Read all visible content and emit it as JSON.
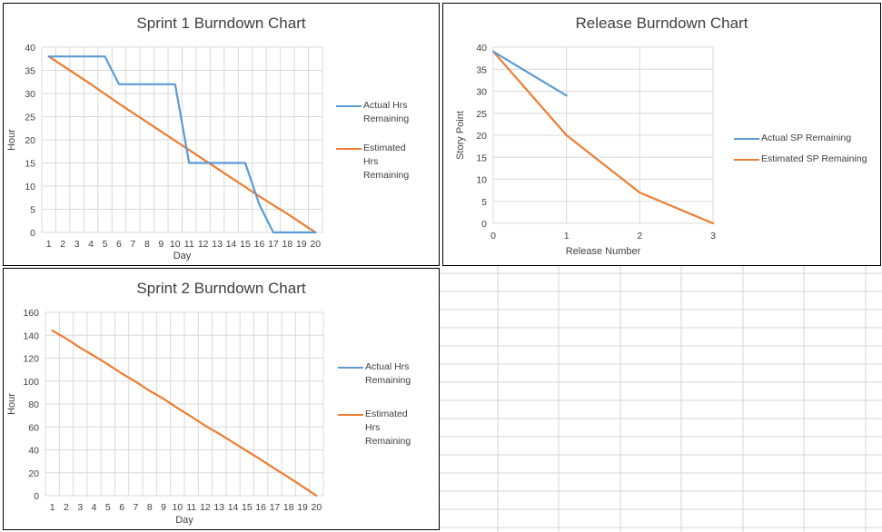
{
  "colors": {
    "actual": "#5B9BD5",
    "estimated": "#ED7D31",
    "gridline": "#D9D9D9",
    "sheet_grid": "#D4D4D4"
  },
  "chart_data": [
    {
      "type": "line",
      "title": "Sprint 1 Burndown Chart",
      "xlabel": "Day",
      "ylabel": "Hour",
      "x": [
        1,
        2,
        3,
        4,
        5,
        6,
        7,
        8,
        9,
        10,
        11,
        12,
        13,
        14,
        15,
        16,
        17,
        18,
        19,
        20
      ],
      "ylim": [
        0,
        40
      ],
      "ytick_step": 5,
      "grid": true,
      "legend": "right",
      "series": [
        {
          "name": "Actual Hrs Remaining",
          "x": [
            1,
            2,
            3,
            4,
            5,
            6,
            7,
            8,
            9,
            10,
            11,
            12,
            13,
            14,
            15,
            16,
            17,
            18,
            19,
            20
          ],
          "values": [
            38,
            38,
            38,
            38,
            38,
            32,
            32,
            32,
            32,
            32,
            15,
            15,
            15,
            15,
            15,
            6,
            0,
            0,
            0,
            0
          ]
        },
        {
          "name": "Estimated Hrs Remaining",
          "x": [
            1,
            2,
            3,
            4,
            5,
            6,
            7,
            8,
            9,
            10,
            11,
            12,
            13,
            14,
            15,
            16,
            17,
            18,
            19,
            20
          ],
          "values": [
            38,
            36,
            34,
            32,
            29.9,
            27.8,
            25.8,
            23.8,
            21.8,
            19.8,
            17.8,
            15.8,
            13.8,
            11.8,
            9.8,
            7.8,
            5.9,
            4,
            2,
            0
          ]
        }
      ]
    },
    {
      "type": "line",
      "title": "Release Burndown Chart",
      "xlabel": "Release Number",
      "ylabel": "Story Point",
      "x": [
        0,
        1,
        2,
        3
      ],
      "ylim": [
        0,
        40
      ],
      "ytick_step": 5,
      "grid": true,
      "legend": "right",
      "series": [
        {
          "name": "Actual SP Remaining",
          "x": [
            0,
            1
          ],
          "values": [
            39,
            29
          ]
        },
        {
          "name": "Estimated SP Remaining",
          "x": [
            0,
            1,
            2,
            3
          ],
          "values": [
            39,
            20,
            7,
            0
          ]
        }
      ]
    },
    {
      "type": "line",
      "title": "Sprint 2 Burndown Chart",
      "xlabel": "Day",
      "ylabel": "Hour",
      "x": [
        1,
        2,
        3,
        4,
        5,
        6,
        7,
        8,
        9,
        10,
        11,
        12,
        13,
        14,
        15,
        16,
        17,
        18,
        19,
        20
      ],
      "ylim": [
        0,
        160
      ],
      "ytick_step": 20,
      "grid": true,
      "legend": "right",
      "series": [
        {
          "name": "Actual Hrs Remaining",
          "x": [],
          "values": []
        },
        {
          "name": "Estimated Hrs Remaining",
          "x": [
            1,
            2,
            3,
            4,
            5,
            6,
            7,
            8,
            9,
            10,
            11,
            12,
            13,
            14,
            15,
            16,
            17,
            18,
            19,
            20
          ],
          "values": [
            144,
            137,
            129,
            122,
            114.5,
            106.5,
            99.5,
            91.5,
            84.5,
            76.5,
            69,
            61,
            54,
            46.5,
            39,
            31.5,
            23.5,
            16,
            8,
            0
          ]
        }
      ]
    }
  ]
}
